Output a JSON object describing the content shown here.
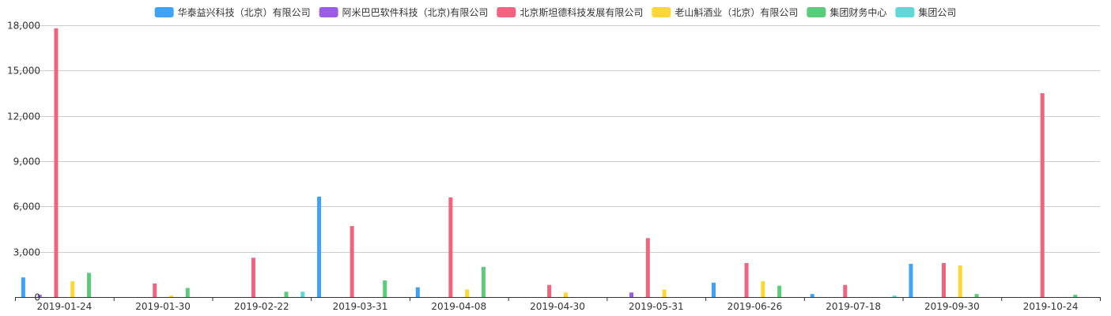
{
  "chart_data": {
    "type": "bar",
    "categories": [
      "2019-01-24",
      "2019-01-30",
      "2019-02-22",
      "2019-03-31",
      "2019-04-08",
      "2019-04-30",
      "2019-05-31",
      "2019-06-26",
      "2019-07-18",
      "2019-09-30",
      "2019-10-24"
    ],
    "y_ticks": [
      "0",
      "3,000",
      "6,000",
      "9,000",
      "12,000",
      "15,000",
      "18,000"
    ],
    "ylim": [
      0,
      18000
    ],
    "grid": true,
    "legend_position": "top-center",
    "series": [
      {
        "name": "华泰益兴科技（北京）有限公司",
        "color": "#3fa2f7",
        "values": [
          1300,
          0,
          0,
          6650,
          650,
          0,
          0,
          950,
          200,
          2200,
          0
        ]
      },
      {
        "name": "阿米巴巴软件科技（北京)有限公司",
        "color": "#9b5de5",
        "values": [
          150,
          0,
          0,
          0,
          0,
          0,
          300,
          0,
          0,
          0,
          0
        ]
      },
      {
        "name": "北京斯坦德科技发展有限公司",
        "color": "#f0647f",
        "values": [
          17800,
          900,
          2600,
          4700,
          6600,
          800,
          3900,
          2250,
          800,
          2250,
          13500
        ]
      },
      {
        "name": "老山斛酒业（北京）有限公司",
        "color": "#fdd835",
        "values": [
          1050,
          100,
          0,
          0,
          500,
          300,
          500,
          1050,
          0,
          2100,
          0
        ]
      },
      {
        "name": "集团财务中心",
        "color": "#5ccb7a",
        "values": [
          1600,
          600,
          350,
          1100,
          2000,
          0,
          0,
          750,
          0,
          200,
          150
        ]
      },
      {
        "name": "集团公司",
        "color": "#5fd8d8",
        "values": [
          0,
          0,
          350,
          0,
          0,
          0,
          0,
          0,
          100,
          0,
          0
        ]
      }
    ]
  }
}
